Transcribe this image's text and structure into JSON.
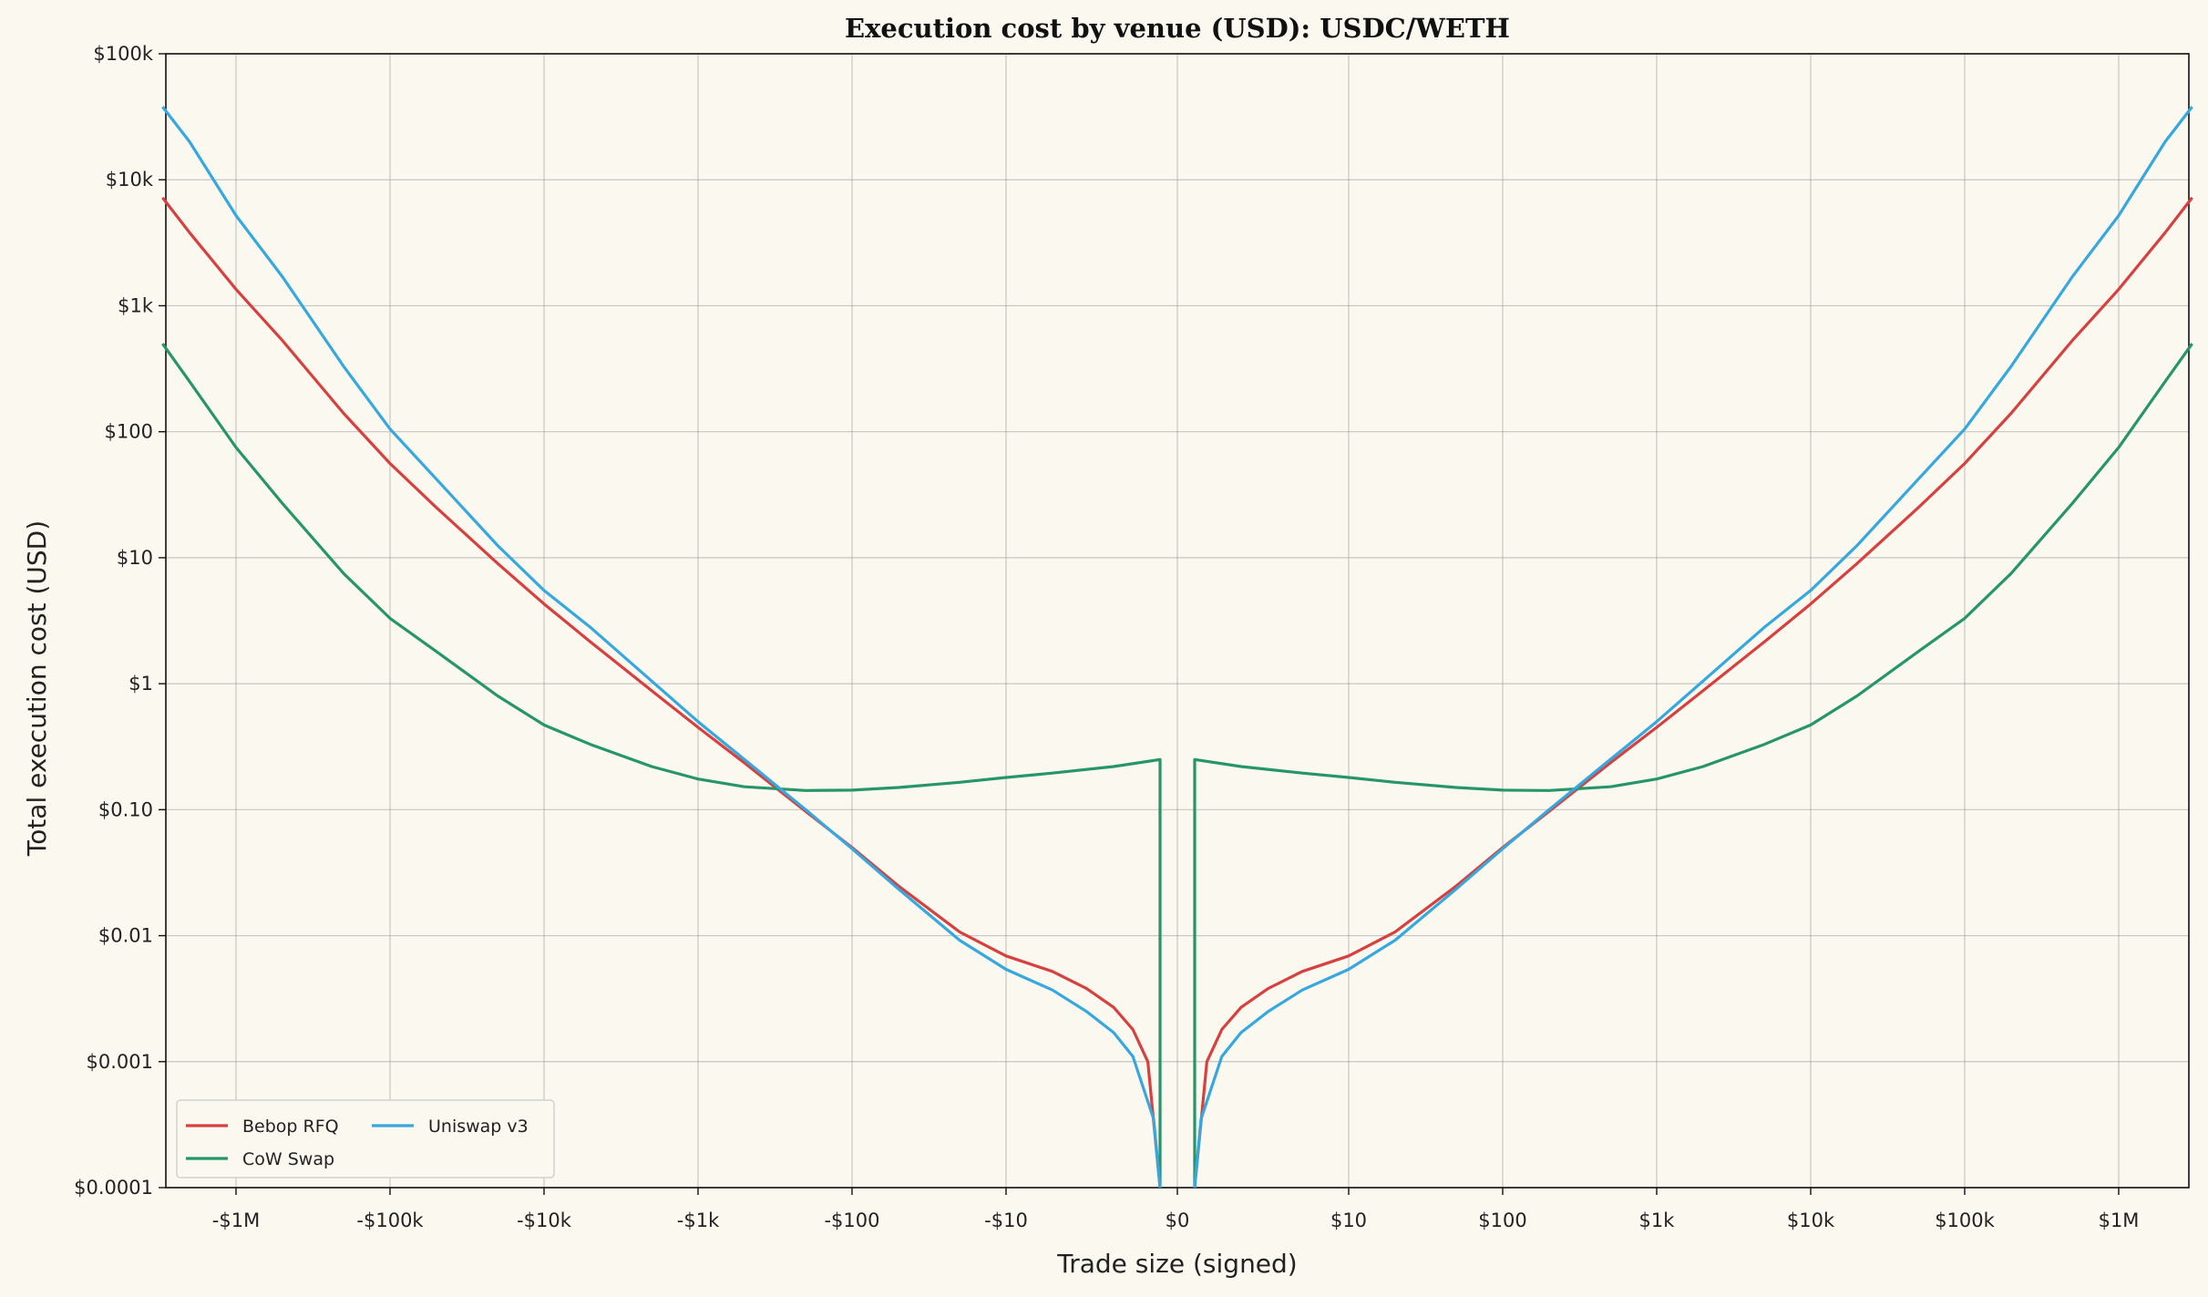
{
  "chart_data": {
    "type": "line",
    "title": "Execution cost by venue (USD): USDC/WETH",
    "xlabel": "Trade size (signed)",
    "ylabel": "Total execution cost (USD)",
    "x_scale": "symlog",
    "y_scale": "log",
    "xlim": [
      -3000000,
      3000000
    ],
    "ylim": [
      0.0001,
      100000
    ],
    "x_ticks": [
      {
        "value": -1000000,
        "label": "-$1M"
      },
      {
        "value": -100000,
        "label": "-$100k"
      },
      {
        "value": -10000,
        "label": "-$10k"
      },
      {
        "value": -1000,
        "label": "-$1k"
      },
      {
        "value": -100,
        "label": "-$100"
      },
      {
        "value": -10,
        "label": "-$10"
      },
      {
        "value": 0,
        "label": "$0"
      },
      {
        "value": 10,
        "label": "$10"
      },
      {
        "value": 100,
        "label": "$100"
      },
      {
        "value": 1000,
        "label": "$1k"
      },
      {
        "value": 10000,
        "label": "$10k"
      },
      {
        "value": 100000,
        "label": "$100k"
      },
      {
        "value": 1000000,
        "label": "$1M"
      }
    ],
    "y_ticks": [
      {
        "value": 0.0001,
        "label": "$0.0001"
      },
      {
        "value": 0.001,
        "label": "$0.001"
      },
      {
        "value": 0.01,
        "label": "$0.01"
      },
      {
        "value": 0.1,
        "label": "$0.10"
      },
      {
        "value": 1,
        "label": "$1"
      },
      {
        "value": 10,
        "label": "$10"
      },
      {
        "value": 100,
        "label": "$100"
      },
      {
        "value": 1000,
        "label": "$1k"
      },
      {
        "value": 10000,
        "label": "$10k"
      },
      {
        "value": 100000,
        "label": "$100k"
      }
    ],
    "grid": true,
    "legend_position": "bottom-left",
    "series": [
      {
        "name": "Bebop RFQ",
        "color": "#d8403f",
        "points_positive": [
          [
            1,
            0.0001
          ],
          [
            1.2,
            0.001
          ],
          [
            1.5,
            0.0018
          ],
          [
            2,
            0.0027
          ],
          [
            3,
            0.0038
          ],
          [
            5,
            0.0052
          ],
          [
            10,
            0.0069
          ],
          [
            20,
            0.0107
          ],
          [
            50,
            0.0248
          ],
          [
            100,
            0.05
          ],
          [
            200,
            0.097
          ],
          [
            500,
            0.235
          ],
          [
            1000,
            0.45
          ],
          [
            2000,
            0.88
          ],
          [
            5000,
            2.15
          ],
          [
            10000,
            4.3
          ],
          [
            20000,
            9.0
          ],
          [
            50000,
            25
          ],
          [
            100000,
            56
          ],
          [
            200000,
            140
          ],
          [
            500000,
            530
          ],
          [
            1000000,
            1350
          ],
          [
            2000000,
            3800
          ],
          [
            3000000,
            7200
          ]
        ]
      },
      {
        "name": "CoW Swap",
        "color": "#27956a",
        "points_positive": [
          [
            1,
            0.0001
          ],
          [
            1,
            0.25
          ],
          [
            2,
            0.22
          ],
          [
            5,
            0.195
          ],
          [
            10,
            0.18
          ],
          [
            20,
            0.165
          ],
          [
            50,
            0.15
          ],
          [
            100,
            0.143
          ],
          [
            200,
            0.142
          ],
          [
            500,
            0.152
          ],
          [
            1000,
            0.175
          ],
          [
            2000,
            0.22
          ],
          [
            5000,
            0.33
          ],
          [
            10000,
            0.47
          ],
          [
            20000,
            0.8
          ],
          [
            50000,
            1.8
          ],
          [
            100000,
            3.3
          ],
          [
            200000,
            7.5
          ],
          [
            500000,
            27
          ],
          [
            1000000,
            75
          ],
          [
            2000000,
            250
          ],
          [
            3000000,
            500
          ]
        ]
      },
      {
        "name": "Uniswap v3",
        "color": "#35a8e0",
        "points_positive": [
          [
            1,
            0.0001
          ],
          [
            1.1,
            0.00035
          ],
          [
            1.5,
            0.0011
          ],
          [
            2,
            0.0017
          ],
          [
            3,
            0.0025
          ],
          [
            5,
            0.0037
          ],
          [
            10,
            0.0054
          ],
          [
            20,
            0.0092
          ],
          [
            50,
            0.0235
          ],
          [
            100,
            0.049
          ],
          [
            200,
            0.1
          ],
          [
            500,
            0.25
          ],
          [
            1000,
            0.5
          ],
          [
            2000,
            1.05
          ],
          [
            5000,
            2.8
          ],
          [
            10000,
            5.5
          ],
          [
            20000,
            12.5
          ],
          [
            50000,
            42
          ],
          [
            100000,
            105
          ],
          [
            200000,
            330
          ],
          [
            500000,
            1700
          ],
          [
            1000000,
            5200
          ],
          [
            2000000,
            20000
          ],
          [
            3000000,
            38000
          ]
        ]
      }
    ],
    "symmetric": true
  }
}
